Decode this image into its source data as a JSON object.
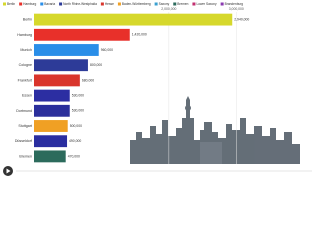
{
  "chart_data": {
    "type": "hbar",
    "categories": [
      "Berlin",
      "Hamburg",
      "Munich",
      "Cologne",
      "Frankfurt",
      "Essen",
      "Dortmund",
      "Stuttgart",
      "Düsseldorf",
      "Bremen"
    ],
    "values": [
      2940000,
      1420000,
      960000,
      800000,
      680000,
      530000,
      530000,
      500000,
      490000,
      470000
    ],
    "value_labels": [
      "2,940,000",
      "1,420,000",
      "960,000",
      "800,000",
      "680,000",
      "530,000",
      "530,000",
      "500,000",
      "490,000",
      "470,000"
    ],
    "colors": [
      "#d6d82c",
      "#e8302a",
      "#2a8ee8",
      "#2d3b98",
      "#d9352c",
      "#2c2ea2",
      "#2b2f9c",
      "#f0a024",
      "#2a2ea0",
      "#2c6b5c"
    ],
    "legend": [
      {
        "name": "Berlin",
        "color": "#d6d82c"
      },
      {
        "name": "Hamburg",
        "color": "#e8302a"
      },
      {
        "name": "Bavaria",
        "color": "#2a8ee8"
      },
      {
        "name": "North Rhine-Westphalia",
        "color": "#2d3b98"
      },
      {
        "name": "Hesse",
        "color": "#d9352c"
      },
      {
        "name": "Baden-Württemberg",
        "color": "#f0a024"
      },
      {
        "name": "Saxony",
        "color": "#3aa0d0"
      },
      {
        "name": "Bremen",
        "color": "#2c6b5c"
      },
      {
        "name": "Lower Saxony",
        "color": "#c23070"
      },
      {
        "name": "Brandenburg",
        "color": "#8a3ab0"
      }
    ],
    "xlim": [
      0,
      3500000
    ],
    "xticks": [
      {
        "value": 2000000,
        "label": "2,000,000"
      },
      {
        "value": 3000000,
        "label": "3,000,000"
      }
    ],
    "grid": true
  }
}
